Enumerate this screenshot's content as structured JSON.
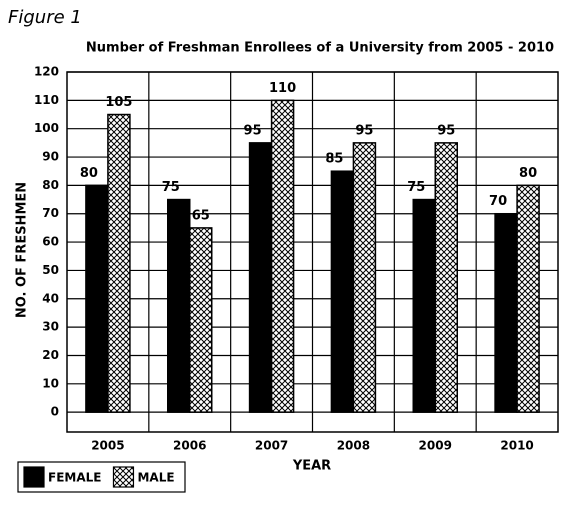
{
  "figure_label": "Figure 1",
  "chart_data": {
    "type": "bar",
    "title": "Number of Freshman Enrollees of a University from 2005 - 2010",
    "x_label": "YEAR",
    "y_label": "NO. OF FRESHMEN",
    "categories": [
      "2005",
      "2006",
      "2007",
      "2008",
      "2009",
      "2010"
    ],
    "series": [
      {
        "name": "FEMALE",
        "color": "#000000",
        "hatch": false,
        "values": [
          80,
          75,
          95,
          85,
          75,
          70
        ]
      },
      {
        "name": "MALE",
        "color": "#000000",
        "hatch": true,
        "values": [
          105,
          65,
          110,
          95,
          95,
          80
        ]
      }
    ],
    "ylim": [
      -7,
      120
    ],
    "yticks": [
      0,
      10,
      20,
      30,
      40,
      50,
      60,
      70,
      80,
      90,
      100,
      110,
      120
    ],
    "grid": true,
    "legend": "bottom-left"
  }
}
